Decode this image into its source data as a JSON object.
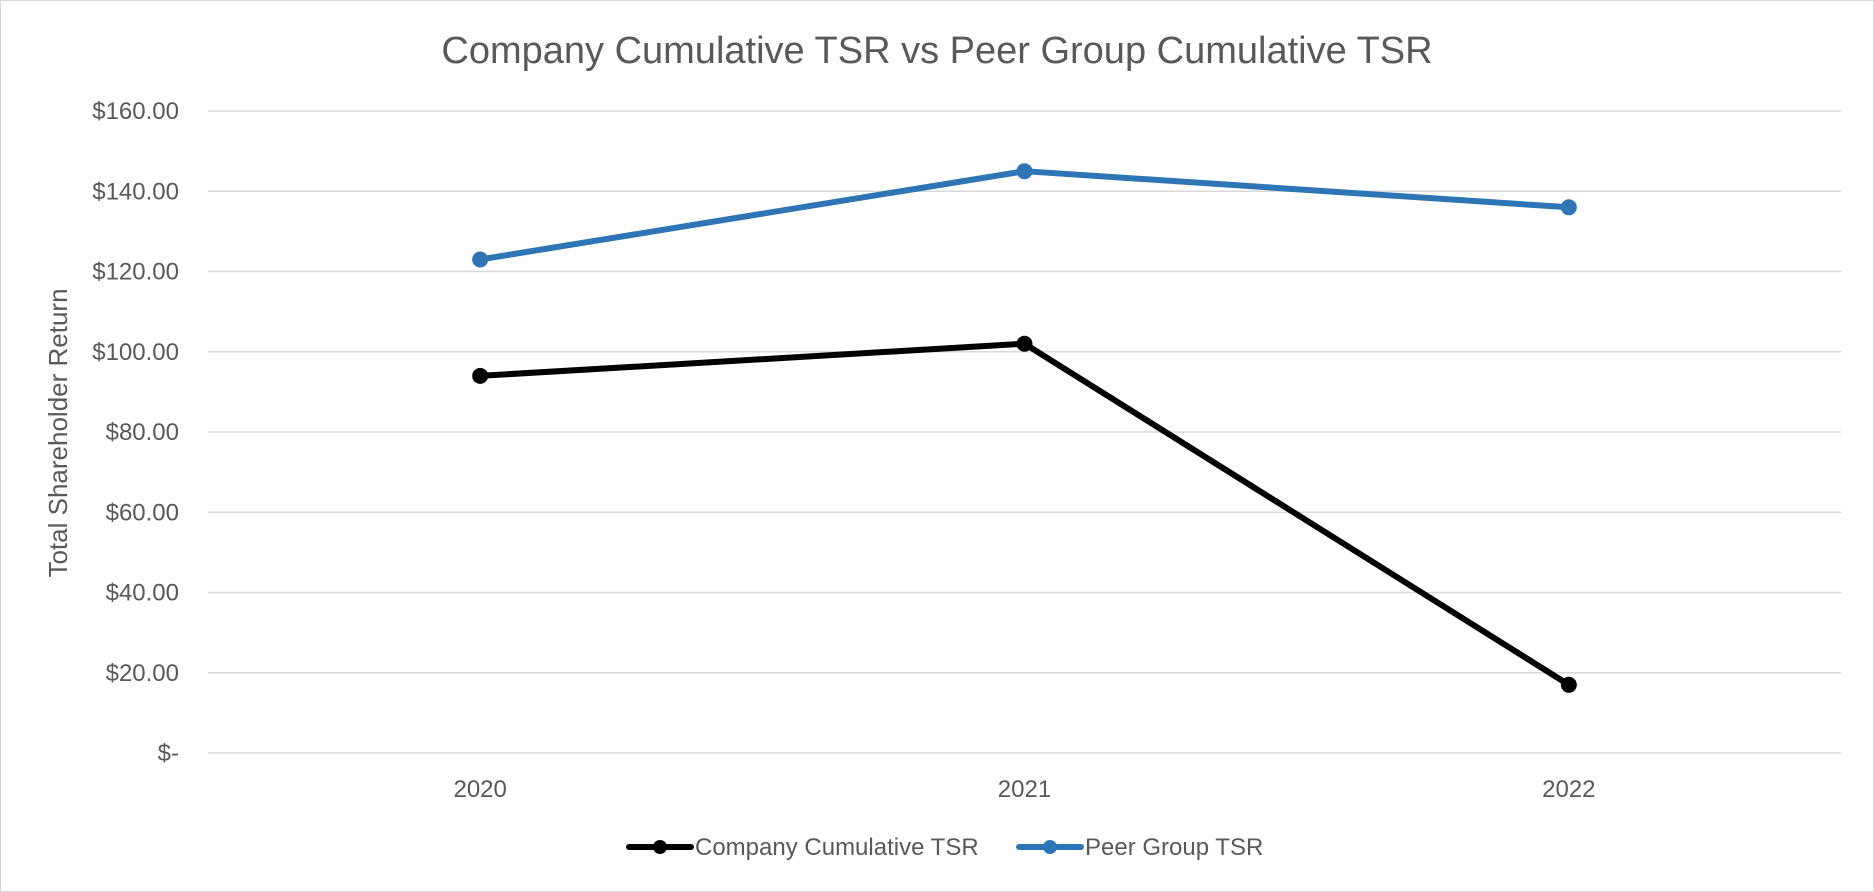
{
  "chart_data": {
    "type": "line",
    "title": "Company Cumulative TSR vs Peer Group Cumulative TSR",
    "xlabel": "",
    "ylabel": "Total Shareholder Return",
    "categories": [
      "2020",
      "2021",
      "2022"
    ],
    "ylim": [
      0,
      160
    ],
    "y_ticks": [
      0,
      20,
      40,
      60,
      80,
      100,
      120,
      140,
      160
    ],
    "y_tick_labels": [
      "$-",
      "$20.00",
      "$40.00",
      "$60.00",
      "$80.00",
      "$100.00",
      "$120.00",
      "$140.00",
      "$160.00"
    ],
    "grid": true,
    "legend_position": "bottom",
    "series": [
      {
        "name": "Company Cumulative TSR",
        "color": "#000000",
        "values": [
          94,
          102,
          17
        ]
      },
      {
        "name": "Peer Group TSR",
        "color": "#2e75b6",
        "values": [
          123,
          145,
          136
        ]
      }
    ]
  }
}
